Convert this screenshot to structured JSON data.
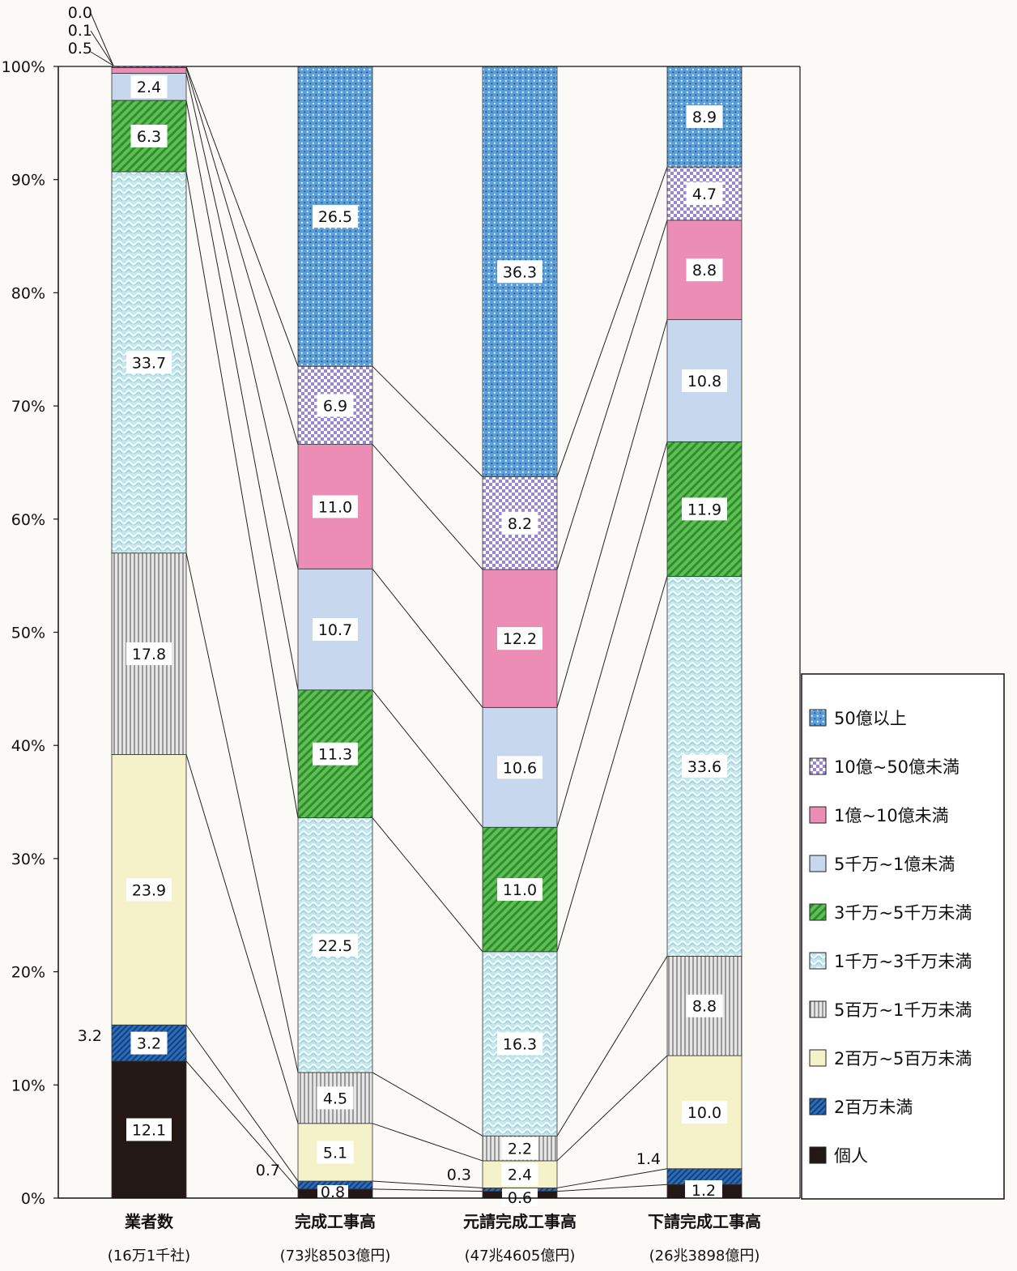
{
  "chart_data": {
    "type": "bar",
    "stacked": true,
    "percent_stacked": true,
    "ylim": [
      0,
      100
    ],
    "y_ticks": [
      "0%",
      "10%",
      "20%",
      "30%",
      "40%",
      "50%",
      "60%",
      "70%",
      "80%",
      "90%",
      "100%"
    ],
    "categories": [
      {
        "name": "業者数",
        "sub": "(16万1千社)"
      },
      {
        "name": "完成工事高",
        "sub": "(73兆8503億円)"
      },
      {
        "name": "元請完成工事高",
        "sub": "(47兆4605億円)"
      },
      {
        "name": "下請完成工事高",
        "sub": "(26兆3898億円)"
      }
    ],
    "series": [
      {
        "name": "個人",
        "color": "#231816",
        "pattern": "solid",
        "values": [
          12.1,
          0.8,
          0.6,
          1.2
        ]
      },
      {
        "name": "2百万未満",
        "color": "#1f5fa8",
        "pattern": "hatch",
        "values": [
          3.2,
          0.7,
          0.3,
          1.4
        ]
      },
      {
        "name": "2百万~5百万未満",
        "color": "#f5f1c8",
        "pattern": "solid",
        "values": [
          23.9,
          5.1,
          2.4,
          10.0
        ]
      },
      {
        "name": "5百万~1千万未満",
        "color": "#d9d9d9",
        "pattern": "vlines",
        "values": [
          17.8,
          4.5,
          2.2,
          8.8
        ]
      },
      {
        "name": "1千万~3千万未満",
        "color": "#bfe4ea",
        "pattern": "wave",
        "values": [
          33.7,
          22.5,
          16.3,
          33.6
        ]
      },
      {
        "name": "3千万~5千万未満",
        "color": "#4fb34a",
        "pattern": "diag",
        "values": [
          6.3,
          11.3,
          11.0,
          11.9
        ]
      },
      {
        "name": "5千万~1億未満",
        "color": "#c6d7ee",
        "pattern": "solid",
        "values": [
          2.4,
          10.7,
          10.6,
          10.8
        ]
      },
      {
        "name": "1億~10億未満",
        "color": "#eb8db4",
        "pattern": "solid",
        "values": [
          0.5,
          11.0,
          12.2,
          8.8
        ]
      },
      {
        "name": "10億~50億未満",
        "color": "#b9a9dc",
        "pattern": "check",
        "values": [
          0.1,
          6.9,
          8.2,
          4.7
        ]
      },
      {
        "name": "50億以上",
        "color": "#5c9fd8",
        "pattern": "dots",
        "values": [
          0.0,
          26.5,
          36.3,
          8.9
        ]
      }
    ],
    "segment_labels": [
      [
        "12.1",
        "3.2",
        "23.9",
        "17.8",
        "33.7",
        "6.3",
        "2.4",
        "0.5",
        "0.1",
        "0.0"
      ],
      [
        "0.8",
        "0.7",
        "5.1",
        "4.5",
        "22.5",
        "11.3",
        "10.7",
        "11.0",
        "6.9",
        "26.5"
      ],
      [
        "0.6",
        "0.3",
        "2.4",
        "2.2",
        "16.3",
        "11.0",
        "10.6",
        "12.2",
        "8.2",
        "36.3"
      ],
      [
        "1.2",
        "1.4",
        "10.0",
        "8.8",
        "33.6",
        "11.9",
        "10.8",
        "8.8",
        "4.7",
        "8.9"
      ]
    ],
    "legend_position": "right",
    "legend_order": [
      "50億以上",
      "10億~50億未満",
      "1億~10億未満",
      "5千万~1億未満",
      "3千万~5千万未満",
      "1千万~3千万未満",
      "5百万~1千万未満",
      "2百万~5百万未満",
      "2百万未満",
      "個人"
    ],
    "grid": false
  }
}
